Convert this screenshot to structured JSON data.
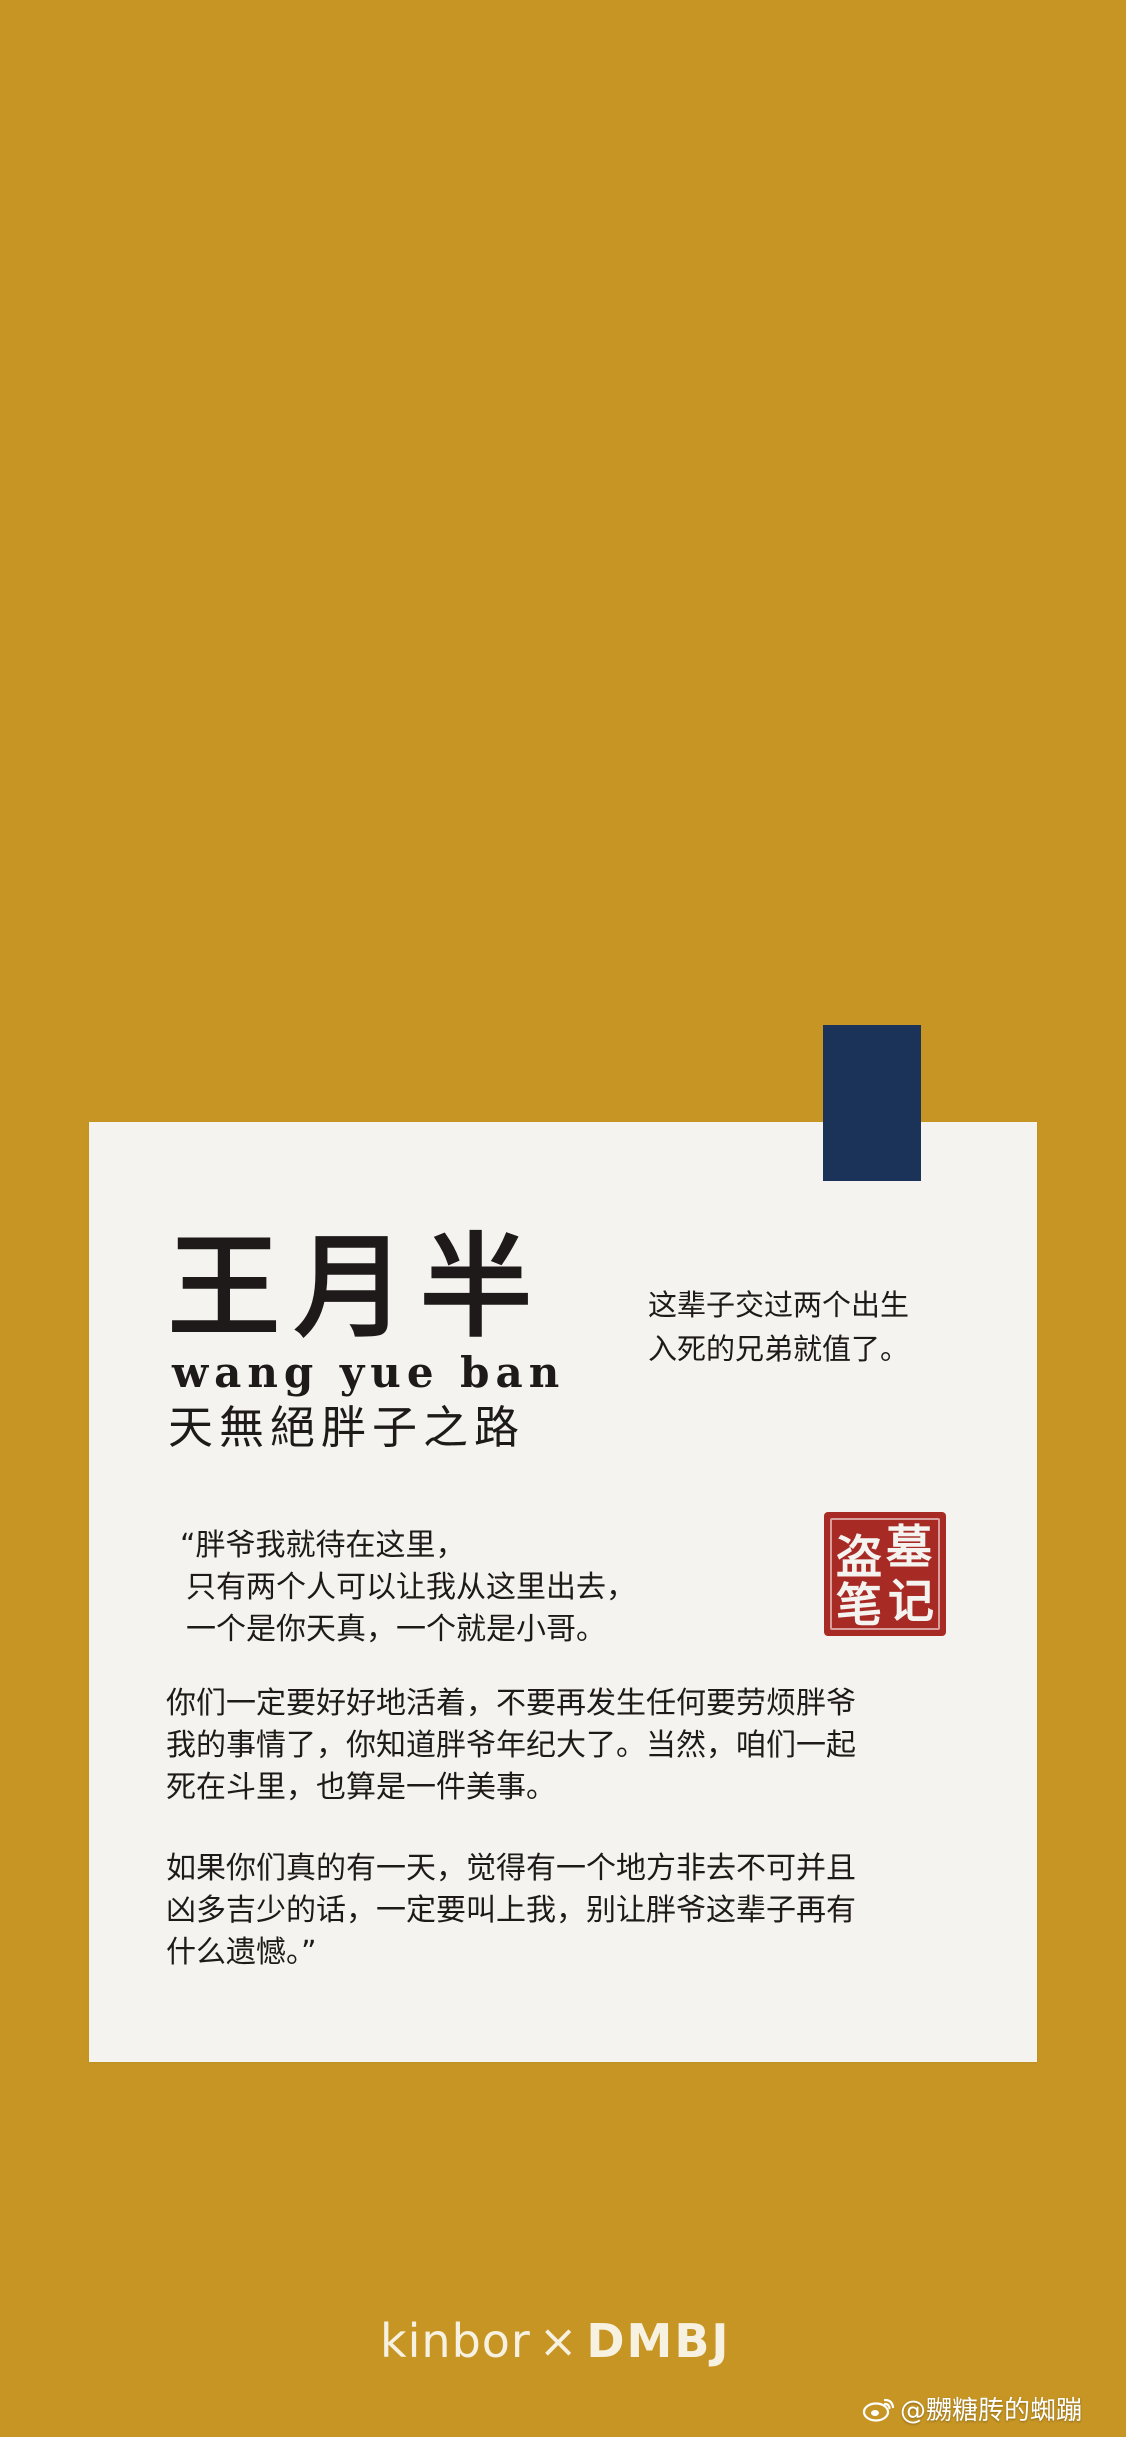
{
  "character": {
    "name_cn": "王月半",
    "name_en": "wang yue ban",
    "motto": "天無絕胖子之路"
  },
  "side_quote": {
    "lines": [
      "这辈子交过两个出生",
      "入死的兄弟就值了。"
    ]
  },
  "seal": {
    "chars": [
      "墓",
      "盗",
      "记",
      "笔"
    ],
    "color": "#a82a25"
  },
  "quote": {
    "intro_lines": [
      "“胖爷我就待在这里，",
      "只有两个人可以让我从这里出去，",
      "一个是你天真，一个就是小哥。"
    ],
    "para1_lines": [
      "你们一定要好好地活着，不要再发生任何要劳烦胖爷",
      "我的事情了，你知道胖爷年纪大了。当然，咱们一起",
      "死在斗里，也算是一件美事。"
    ],
    "para2_lines": [
      "如果你们真的有一天，觉得有一个地方非去不可并且",
      "凶多吉少的话，一定要叫上我，别让胖爷这辈子再有",
      "什么遗憾。”"
    ]
  },
  "branding": {
    "kinbor": "kinbor",
    "x": "×",
    "dmbj": "DMBJ"
  },
  "watermark": {
    "text": "@嬲糖䏝的蜘蹦"
  },
  "colors": {
    "background": "#c69523",
    "card": "#f4f3ef",
    "tab": "#1b3359",
    "text": "#1f1a1a"
  }
}
